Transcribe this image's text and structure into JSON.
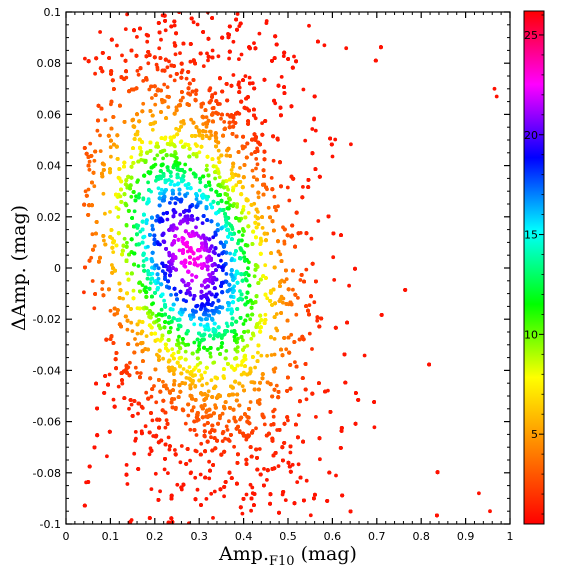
{
  "chart_data": {
    "type": "scatter",
    "xlabel": "Amp.",
    "xlabel_subscript": "F10",
    "xlabel_unit": " (mag)",
    "ylabel": "ΔAmp. (mag)",
    "xlim": [
      0,
      1
    ],
    "ylim": [
      -0.1,
      0.1
    ],
    "xticks": [
      "0",
      "0.1",
      "0.2",
      "0.3",
      "0.4",
      "0.5",
      "0.6",
      "0.7",
      "0.8",
      "0.9",
      "1"
    ],
    "yticks": [
      "-0.1",
      "-0.08",
      "-0.06",
      "-0.04",
      "-0.02",
      "0",
      "0.02",
      "0.04",
      "0.06",
      "0.08",
      "0.1"
    ],
    "color_by": "point density",
    "colorbar": {
      "range": [
        0.5,
        26.2
      ],
      "ticks": [
        "5",
        "10",
        "15",
        "20",
        "25"
      ],
      "colormap": "red-yellow-green-cyan-blue-magenta-red",
      "stops": [
        "#ff0000",
        "#ff8000",
        "#ffff00",
        "#00ff00",
        "#00ffff",
        "#0000ff",
        "#ff00ff",
        "#ff0000"
      ]
    },
    "distribution": {
      "density_peak": [
        0.28,
        0.005
      ],
      "peak_density": 23,
      "typical_x_range": [
        0.07,
        0.75
      ],
      "typical_y_range": [
        -0.1,
        0.1
      ],
      "outlier_points": [
        [
          0.965,
          0.07
        ],
        [
          0.97,
          0.067
        ],
        [
          0.955,
          -0.095
        ],
        [
          0.93,
          -0.088
        ]
      ]
    },
    "grid": false,
    "legend": "none"
  }
}
